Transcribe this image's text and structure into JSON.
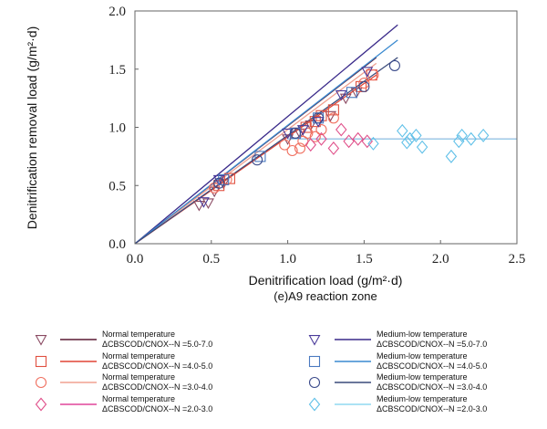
{
  "chart_data": {
    "type": "scatter",
    "title": "",
    "caption": "(e)A9 reaction zone",
    "xlabel": "Denitrification load (g/m²·d)",
    "ylabel": "Denitrification removal load (g/m²·d)",
    "xlim": [
      0.0,
      2.5
    ],
    "ylim": [
      0.0,
      2.0
    ],
    "xticks": [
      "0.0",
      "0.5",
      "1.0",
      "1.5",
      "2.0",
      "2.5"
    ],
    "yticks": [
      "0.0",
      "0.5",
      "1.0",
      "1.5",
      "2.0"
    ],
    "xtick_values": [
      0,
      0.5,
      1.0,
      1.5,
      2.0,
      2.5
    ],
    "ytick_values": [
      0,
      0.5,
      1.0,
      1.5,
      2.0
    ],
    "legend_position": "bottom",
    "series": [
      {
        "id": "nt1",
        "marker": "triangle",
        "color": "#8a4a62",
        "line_color": "#5a1a34",
        "temp": "Normal temperature",
        "ratio": "ΔCBSCOD/CNOX--N =5.0-7.0",
        "points": [
          [
            0.42,
            0.33
          ],
          [
            0.48,
            0.35
          ],
          [
            0.52,
            0.45
          ],
          [
            0.58,
            0.52
          ],
          [
            1.0,
            0.9
          ],
          [
            1.08,
            0.95
          ],
          [
            1.15,
            1.02
          ],
          [
            1.28,
            1.1
          ],
          [
            1.38,
            1.25
          ],
          [
            1.45,
            1.3
          ]
        ],
        "line": [
          [
            0,
            0
          ],
          [
            1.58,
            1.6
          ]
        ]
      },
      {
        "id": "nt2",
        "marker": "square",
        "color": "#e05040",
        "line_color": "#e04535",
        "temp": "Normal temperature",
        "ratio": "ΔCBSCOD/CNOX--N =4.0-5.0",
        "points": [
          [
            0.55,
            0.5
          ],
          [
            0.62,
            0.56
          ],
          [
            1.05,
            0.95
          ],
          [
            1.12,
            1.0
          ],
          [
            1.18,
            1.05
          ],
          [
            1.22,
            1.1
          ],
          [
            1.3,
            1.15
          ],
          [
            1.48,
            1.35
          ],
          [
            1.55,
            1.45
          ]
        ],
        "line": [
          [
            0,
            0
          ],
          [
            1.58,
            1.45
          ]
        ]
      },
      {
        "id": "nt3",
        "marker": "circle",
        "color": "#f07060",
        "line_color": "#f0a090",
        "temp": "Normal temperature",
        "ratio": "ΔCBSCOD/CNOX--N =3.0-4.0",
        "points": [
          [
            0.52,
            0.48
          ],
          [
            0.6,
            0.55
          ],
          [
            0.98,
            0.85
          ],
          [
            1.03,
            0.8
          ],
          [
            1.08,
            0.82
          ],
          [
            1.1,
            0.88
          ],
          [
            1.13,
            0.95
          ],
          [
            1.18,
            0.92
          ],
          [
            1.22,
            0.98
          ],
          [
            1.3,
            1.08
          ],
          [
            1.5,
            1.38
          ],
          [
            1.56,
            1.45
          ]
        ],
        "line": [
          [
            0,
            0
          ],
          [
            1.58,
            1.55
          ]
        ]
      },
      {
        "id": "nt4",
        "marker": "diamond",
        "color": "#e0508a",
        "line_color": "#e0459a",
        "temp": "Normal temperature",
        "ratio": "ΔCBSCOD/CNOX--N =2.0-3.0",
        "points": [
          [
            1.15,
            0.85
          ],
          [
            1.22,
            0.9
          ],
          [
            1.3,
            0.82
          ],
          [
            1.35,
            0.98
          ],
          [
            1.4,
            0.88
          ],
          [
            1.46,
            0.9
          ],
          [
            1.52,
            0.88
          ]
        ],
        "line": [
          [
            1.0,
            0.9
          ],
          [
            2.5,
            0.9
          ]
        ]
      },
      {
        "id": "ml1",
        "marker": "triangle",
        "color": "#4a3a9a",
        "line_color": "#3a2a8a",
        "temp": "Medium-low temperature",
        "ratio": "ΔCBSCOD/CNOX--N =5.0-7.0",
        "points": [
          [
            0.45,
            0.36
          ],
          [
            0.55,
            0.55
          ],
          [
            1.0,
            0.95
          ],
          [
            1.1,
            0.98
          ],
          [
            1.2,
            1.05
          ],
          [
            1.35,
            1.28
          ],
          [
            1.52,
            1.48
          ]
        ],
        "line": [
          [
            0,
            0
          ],
          [
            1.72,
            1.88
          ]
        ]
      },
      {
        "id": "ml2",
        "marker": "square",
        "color": "#4a7ac0",
        "line_color": "#3a8ad0",
        "temp": "Medium-low temperature",
        "ratio": "ΔCBSCOD/CNOX--N =4.0-5.0",
        "points": [
          [
            0.58,
            0.55
          ],
          [
            0.82,
            0.75
          ],
          [
            1.05,
            0.95
          ],
          [
            1.2,
            1.08
          ],
          [
            1.42,
            1.3
          ]
        ],
        "line": [
          [
            0,
            0
          ],
          [
            1.72,
            1.75
          ]
        ]
      },
      {
        "id": "ml3",
        "marker": "circle",
        "color": "#3a4a8a",
        "line_color": "#3a4a7a",
        "temp": "Medium-low temperature",
        "ratio": "ΔCBSCOD/CNOX--N =3.0-4.0",
        "points": [
          [
            0.55,
            0.52
          ],
          [
            0.8,
            0.72
          ],
          [
            1.05,
            0.95
          ],
          [
            1.2,
            1.08
          ],
          [
            1.5,
            1.35
          ],
          [
            1.7,
            1.53
          ]
        ],
        "line": [
          [
            0,
            0
          ],
          [
            1.72,
            1.6
          ]
        ]
      },
      {
        "id": "ml4",
        "marker": "diamond",
        "color": "#60c0e8",
        "line_color": "#90d8f0",
        "temp": "Medium-low temperature",
        "ratio": "ΔCBSCOD/CNOX--N =2.0-3.0",
        "points": [
          [
            1.56,
            0.86
          ],
          [
            1.75,
            0.97
          ],
          [
            1.78,
            0.87
          ],
          [
            1.8,
            0.9
          ],
          [
            1.84,
            0.93
          ],
          [
            1.88,
            0.83
          ],
          [
            2.07,
            0.75
          ],
          [
            2.12,
            0.88
          ],
          [
            2.14,
            0.93
          ],
          [
            2.2,
            0.9
          ],
          [
            2.28,
            0.93
          ]
        ],
        "line": [
          [
            1.0,
            0.9
          ],
          [
            2.5,
            0.9
          ]
        ]
      }
    ]
  }
}
